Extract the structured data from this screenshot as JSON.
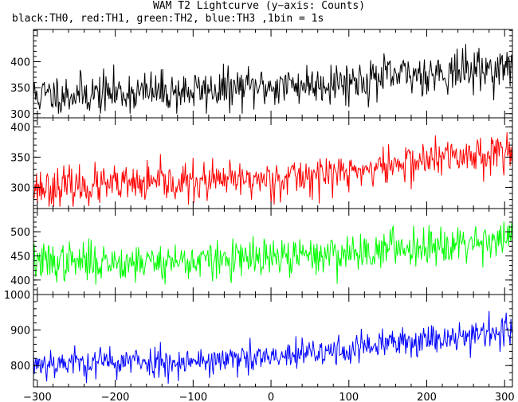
{
  "figure": {
    "title": "WAM T2 Lightcurve (y−axis: Counts)",
    "subtitle": "black:TH0, red:TH1, green:TH2, blue:TH3 ,1bin = 1s"
  },
  "chart_data": [
    {
      "type": "line",
      "panel": 1,
      "color": "#000000",
      "xlim": [
        -305,
        310
      ],
      "ylim": [
        292,
        462
      ],
      "yticks": [
        300,
        350,
        400
      ],
      "y_range": [
        300,
        460
      ],
      "trend": {
        "x": [
          -300,
          -200,
          -100,
          0,
          100,
          200,
          310
        ],
        "y": [
          335,
          340,
          343,
          352,
          362,
          378,
          388
        ]
      },
      "noise_sd": 20,
      "seed": 11
    },
    {
      "type": "line",
      "panel": 2,
      "color": "#ff0000",
      "xlim": [
        -305,
        310
      ],
      "ylim": [
        265,
        415
      ],
      "yticks": [
        300,
        350,
        400
      ],
      "y_range": [
        268,
        412
      ],
      "trend": {
        "x": [
          -300,
          -200,
          -100,
          0,
          100,
          200,
          310
        ],
        "y": [
          300,
          303,
          308,
          314,
          325,
          345,
          362
        ]
      },
      "noise_sd": 16,
      "seed": 23
    },
    {
      "type": "line",
      "panel": 3,
      "color": "#00ff00",
      "xlim": [
        -305,
        310
      ],
      "ylim": [
        370,
        548
      ],
      "yticks": [
        400,
        450,
        500
      ],
      "y_range": [
        373,
        545
      ],
      "trend": {
        "x": [
          -300,
          -200,
          -100,
          0,
          100,
          200,
          310
        ],
        "y": [
          437,
          438,
          439,
          444,
          456,
          473,
          487
        ]
      },
      "noise_sd": 20,
      "seed": 37
    },
    {
      "type": "line",
      "panel": 4,
      "color": "#0000ff",
      "xlim": [
        -305,
        310
      ],
      "ylim": [
        740,
        1000
      ],
      "yticks": [
        800,
        900,
        1000
      ],
      "y_range": [
        742,
        995
      ],
      "xticks": [
        -300,
        -200,
        -100,
        0,
        100,
        200,
        300
      ],
      "trend": {
        "x": [
          -300,
          -200,
          -100,
          0,
          100,
          200,
          310
        ],
        "y": [
          808,
          810,
          812,
          820,
          845,
          875,
          900
        ]
      },
      "noise_sd": 22,
      "seed": 53
    }
  ]
}
